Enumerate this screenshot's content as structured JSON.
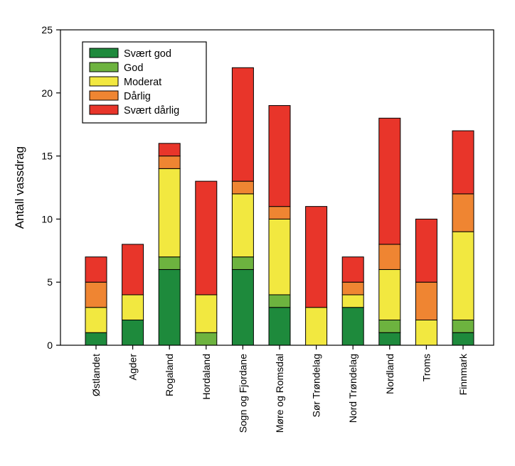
{
  "chart_data": {
    "type": "bar",
    "stacked": true,
    "title": "",
    "xlabel": "",
    "ylabel": "Antall vassdrag",
    "ylim": [
      0,
      25
    ],
    "yticks": [
      0,
      5,
      10,
      15,
      20,
      25
    ],
    "grid": false,
    "legend_position": "top-left",
    "categories": [
      "Østlandet",
      "Agder",
      "Rogaland",
      "Hordaland",
      "Sogn og Fjordane",
      "Møre og Romsdal",
      "Sør Trøndelag",
      "Nord Trøndelag",
      "Nordland",
      "Troms",
      "Finnmark"
    ],
    "series": [
      {
        "name": "Svært god",
        "color": "#1e8a3c",
        "values": [
          1,
          2,
          6,
          0,
          6,
          3,
          0,
          3,
          1,
          0,
          1
        ]
      },
      {
        "name": "God",
        "color": "#6db33f",
        "values": [
          0,
          0,
          1,
          1,
          1,
          1,
          0,
          0,
          1,
          0,
          1
        ]
      },
      {
        "name": "Moderat",
        "color": "#f2e840",
        "values": [
          2,
          2,
          7,
          3,
          5,
          6,
          3,
          1,
          4,
          2,
          7
        ]
      },
      {
        "name": "Dårlig",
        "color": "#ef8532",
        "values": [
          2,
          0,
          1,
          0,
          1,
          1,
          0,
          1,
          2,
          3,
          3
        ]
      },
      {
        "name": "Svært dårlig",
        "color": "#e8352a",
        "values": [
          2,
          4,
          1,
          9,
          9,
          8,
          8,
          2,
          10,
          5,
          5
        ]
      }
    ]
  }
}
